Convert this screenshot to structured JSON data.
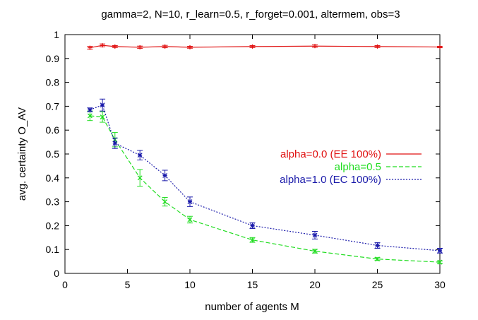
{
  "chart_data": {
    "type": "line",
    "title": "gamma=2, N=10, r_learn=0.5, r_forget=0.001, altermem, obs=3",
    "xlabel": "number of agents M",
    "ylabel": "avg. certainty O_AV",
    "xlim": [
      0,
      30
    ],
    "ylim": [
      0,
      1
    ],
    "x_ticks": [
      "0",
      "5",
      "10",
      "15",
      "20",
      "25",
      "30"
    ],
    "y_ticks": [
      "0",
      "0.1",
      "0.2",
      "0.3",
      "0.4",
      "0.5",
      "0.6",
      "0.7",
      "0.8",
      "0.9",
      "1"
    ],
    "grid": false,
    "legend_position": "center-right",
    "series": [
      {
        "name": "alpha=0.0 (EE 100%)",
        "color": "#e01010",
        "style": "solid",
        "x": [
          2,
          3,
          4,
          6,
          8,
          10,
          15,
          20,
          25,
          30
        ],
        "y": [
          0.945,
          0.955,
          0.95,
          0.947,
          0.95,
          0.947,
          0.95,
          0.952,
          0.95,
          0.948
        ],
        "err": [
          0.006,
          0.006,
          0.004,
          0.005,
          0.005,
          0.004,
          0.004,
          0.005,
          0.004,
          0.003
        ]
      },
      {
        "name": "alpha=0.5",
        "color": "#22dd22",
        "style": "dashed",
        "x": [
          2,
          3,
          4,
          6,
          8,
          10,
          15,
          20,
          25,
          30
        ],
        "y": [
          0.66,
          0.655,
          0.56,
          0.4,
          0.3,
          0.225,
          0.14,
          0.093,
          0.06,
          0.047
        ],
        "err": [
          0.02,
          0.022,
          0.03,
          0.035,
          0.018,
          0.014,
          0.01,
          0.008,
          0.006,
          0.005
        ]
      },
      {
        "name": "alpha=1.0 (EC 100%)",
        "color": "#1a1aaa",
        "style": "dotted",
        "x": [
          2,
          3,
          4,
          6,
          8,
          10,
          15,
          20,
          25,
          30
        ],
        "y": [
          0.685,
          0.705,
          0.545,
          0.495,
          0.41,
          0.3,
          0.2,
          0.16,
          0.117,
          0.095
        ],
        "err": [
          0.008,
          0.025,
          0.022,
          0.02,
          0.022,
          0.02,
          0.012,
          0.016,
          0.012,
          0.01
        ]
      }
    ]
  }
}
